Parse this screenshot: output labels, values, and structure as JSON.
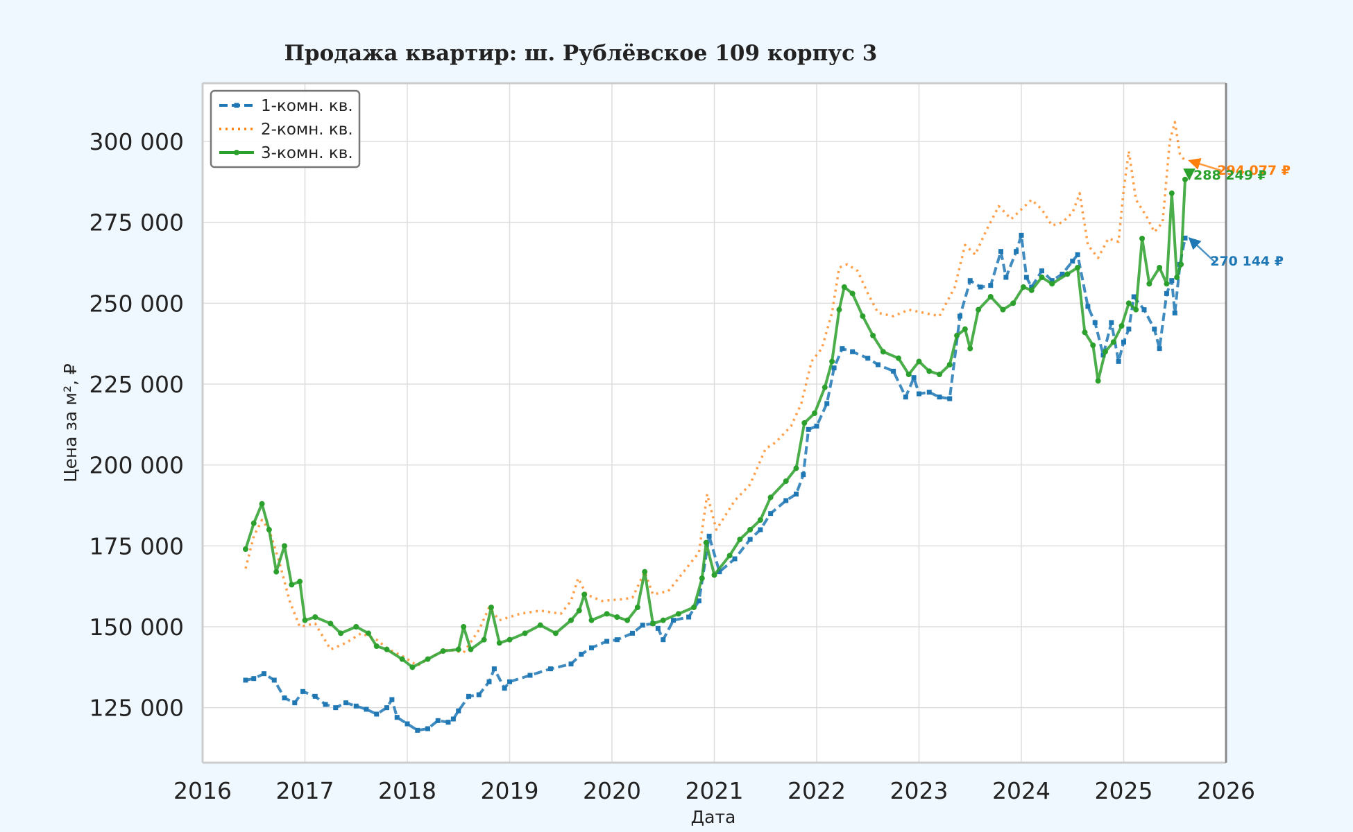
{
  "chart_data": {
    "type": "line",
    "title": "Продажа квартир: ш. Рублёвское 109 корпус 3",
    "xlabel": "Дата",
    "ylabel": "Цена за м², ₽",
    "xlim": [
      2016,
      2026
    ],
    "ylim": [
      108000,
      318000
    ],
    "x_ticks": [
      "2016",
      "2017",
      "2018",
      "2019",
      "2020",
      "2021",
      "2022",
      "2023",
      "2024",
      "2025",
      "2026"
    ],
    "y_ticks": [
      "125 000",
      "150 000",
      "175 000",
      "200 000",
      "225 000",
      "250 000",
      "275 000",
      "300 000"
    ],
    "grid": true,
    "legend_position": "top-left",
    "series": [
      {
        "name": "1-комн. кв.",
        "color": "#1f77b4",
        "style": "dashed-square-markers",
        "points": [
          [
            2016.42,
            133500
          ],
          [
            2016.5,
            134000
          ],
          [
            2016.6,
            135500
          ],
          [
            2016.7,
            133500
          ],
          [
            2016.8,
            128000
          ],
          [
            2016.9,
            126500
          ],
          [
            2016.98,
            130000
          ],
          [
            2017.1,
            128500
          ],
          [
            2017.2,
            126000
          ],
          [
            2017.3,
            125000
          ],
          [
            2017.4,
            126500
          ],
          [
            2017.5,
            125500
          ],
          [
            2017.6,
            124500
          ],
          [
            2017.7,
            123000
          ],
          [
            2017.8,
            125000
          ],
          [
            2017.85,
            127500
          ],
          [
            2017.9,
            122000
          ],
          [
            2018.0,
            120000
          ],
          [
            2018.1,
            118000
          ],
          [
            2018.2,
            118500
          ],
          [
            2018.3,
            121000
          ],
          [
            2018.4,
            120500
          ],
          [
            2018.45,
            121500
          ],
          [
            2018.5,
            124000
          ],
          [
            2018.6,
            128500
          ],
          [
            2018.7,
            129000
          ],
          [
            2018.8,
            133000
          ],
          [
            2018.85,
            137000
          ],
          [
            2018.95,
            131000
          ],
          [
            2019.0,
            133000
          ],
          [
            2019.2,
            135000
          ],
          [
            2019.4,
            137000
          ],
          [
            2019.6,
            138500
          ],
          [
            2019.7,
            141500
          ],
          [
            2019.8,
            143500
          ],
          [
            2019.95,
            145500
          ],
          [
            2020.05,
            146000
          ],
          [
            2020.2,
            148000
          ],
          [
            2020.3,
            150500
          ],
          [
            2020.4,
            151000
          ],
          [
            2020.45,
            149500
          ],
          [
            2020.5,
            146000
          ],
          [
            2020.6,
            152000
          ],
          [
            2020.75,
            153000
          ],
          [
            2020.85,
            158000
          ],
          [
            2020.95,
            178000
          ],
          [
            2021.05,
            167000
          ],
          [
            2021.2,
            171000
          ],
          [
            2021.35,
            177000
          ],
          [
            2021.45,
            180000
          ],
          [
            2021.55,
            185000
          ],
          [
            2021.7,
            189000
          ],
          [
            2021.8,
            191000
          ],
          [
            2021.87,
            197000
          ],
          [
            2021.92,
            211000
          ],
          [
            2022.0,
            212000
          ],
          [
            2022.1,
            219000
          ],
          [
            2022.17,
            230000
          ],
          [
            2022.25,
            236000
          ],
          [
            2022.35,
            235000
          ],
          [
            2022.5,
            233000
          ],
          [
            2022.6,
            231000
          ],
          [
            2022.75,
            229000
          ],
          [
            2022.87,
            221000
          ],
          [
            2022.95,
            227000
          ],
          [
            2023.0,
            222000
          ],
          [
            2023.1,
            222500
          ],
          [
            2023.2,
            221000
          ],
          [
            2023.3,
            220500
          ],
          [
            2023.4,
            246000
          ],
          [
            2023.5,
            257000
          ],
          [
            2023.6,
            255000
          ],
          [
            2023.7,
            255500
          ],
          [
            2023.8,
            266000
          ],
          [
            2023.85,
            258000
          ],
          [
            2023.95,
            266000
          ],
          [
            2024.0,
            271000
          ],
          [
            2024.05,
            258000
          ],
          [
            2024.1,
            255000
          ],
          [
            2024.2,
            260000
          ],
          [
            2024.3,
            257000
          ],
          [
            2024.4,
            259000
          ],
          [
            2024.5,
            263000
          ],
          [
            2024.55,
            265000
          ],
          [
            2024.65,
            249000
          ],
          [
            2024.72,
            244000
          ],
          [
            2024.8,
            234000
          ],
          [
            2024.88,
            244000
          ],
          [
            2024.95,
            232000
          ],
          [
            2025.0,
            238000
          ],
          [
            2025.05,
            242000
          ],
          [
            2025.1,
            252000
          ],
          [
            2025.2,
            248000
          ],
          [
            2025.3,
            242000
          ],
          [
            2025.35,
            236000
          ],
          [
            2025.42,
            253000
          ],
          [
            2025.47,
            257000
          ],
          [
            2025.5,
            247000
          ],
          [
            2025.55,
            262000
          ],
          [
            2025.6,
            270144
          ]
        ]
      },
      {
        "name": "2-комн. кв.",
        "color": "#ff7f0e",
        "style": "dotted",
        "points": [
          [
            2016.42,
            168000
          ],
          [
            2016.5,
            178000
          ],
          [
            2016.58,
            183000
          ],
          [
            2016.65,
            180000
          ],
          [
            2016.75,
            170000
          ],
          [
            2016.85,
            158000
          ],
          [
            2016.95,
            150000
          ],
          [
            2017.1,
            151000
          ],
          [
            2017.25,
            143000
          ],
          [
            2017.4,
            145000
          ],
          [
            2017.55,
            148000
          ],
          [
            2017.7,
            146000
          ],
          [
            2017.82,
            143000
          ],
          [
            2017.95,
            141000
          ],
          [
            2018.1,
            138000
          ],
          [
            2018.25,
            141000
          ],
          [
            2018.4,
            143000
          ],
          [
            2018.55,
            142000
          ],
          [
            2018.7,
            149000
          ],
          [
            2018.8,
            156000
          ],
          [
            2018.9,
            152000
          ],
          [
            2019.1,
            154000
          ],
          [
            2019.3,
            155000
          ],
          [
            2019.5,
            154000
          ],
          [
            2019.6,
            158000
          ],
          [
            2019.67,
            165000
          ],
          [
            2019.75,
            160000
          ],
          [
            2019.9,
            158000
          ],
          [
            2020.1,
            158500
          ],
          [
            2020.2,
            159000
          ],
          [
            2020.32,
            167000
          ],
          [
            2020.4,
            160000
          ],
          [
            2020.55,
            161000
          ],
          [
            2020.7,
            167000
          ],
          [
            2020.85,
            173000
          ],
          [
            2020.93,
            191000
          ],
          [
            2021.02,
            180000
          ],
          [
            2021.2,
            189000
          ],
          [
            2021.35,
            194000
          ],
          [
            2021.5,
            205000
          ],
          [
            2021.6,
            207000
          ],
          [
            2021.75,
            212000
          ],
          [
            2021.85,
            219000
          ],
          [
            2021.95,
            232000
          ],
          [
            2022.05,
            236000
          ],
          [
            2022.15,
            247000
          ],
          [
            2022.22,
            261000
          ],
          [
            2022.3,
            262000
          ],
          [
            2022.4,
            260000
          ],
          [
            2022.5,
            253000
          ],
          [
            2022.6,
            247000
          ],
          [
            2022.75,
            246000
          ],
          [
            2022.9,
            248000
          ],
          [
            2023.05,
            247000
          ],
          [
            2023.2,
            246000
          ],
          [
            2023.35,
            255000
          ],
          [
            2023.45,
            268000
          ],
          [
            2023.55,
            265000
          ],
          [
            2023.65,
            272000
          ],
          [
            2023.78,
            280000
          ],
          [
            2023.9,
            276000
          ],
          [
            2024.0,
            279000
          ],
          [
            2024.1,
            282000
          ],
          [
            2024.2,
            279000
          ],
          [
            2024.3,
            274000
          ],
          [
            2024.4,
            275000
          ],
          [
            2024.5,
            278000
          ],
          [
            2024.57,
            284000
          ],
          [
            2024.65,
            268000
          ],
          [
            2024.75,
            264000
          ],
          [
            2024.85,
            270000
          ],
          [
            2024.95,
            269000
          ],
          [
            2025.0,
            285000
          ],
          [
            2025.05,
            297000
          ],
          [
            2025.12,
            282000
          ],
          [
            2025.22,
            277000
          ],
          [
            2025.3,
            272000
          ],
          [
            2025.38,
            275000
          ],
          [
            2025.45,
            300000
          ],
          [
            2025.5,
            306000
          ],
          [
            2025.55,
            296000
          ],
          [
            2025.6,
            294077
          ]
        ]
      },
      {
        "name": "3-комн. кв.",
        "color": "#2ca02c",
        "style": "solid-dot-markers",
        "points": [
          [
            2016.42,
            174000
          ],
          [
            2016.5,
            182000
          ],
          [
            2016.58,
            188000
          ],
          [
            2016.65,
            180000
          ],
          [
            2016.72,
            167000
          ],
          [
            2016.8,
            175000
          ],
          [
            2016.87,
            163000
          ],
          [
            2016.95,
            164000
          ],
          [
            2017.0,
            152000
          ],
          [
            2017.1,
            153000
          ],
          [
            2017.25,
            151000
          ],
          [
            2017.35,
            148000
          ],
          [
            2017.5,
            150000
          ],
          [
            2017.62,
            148000
          ],
          [
            2017.7,
            144000
          ],
          [
            2017.8,
            143000
          ],
          [
            2017.95,
            140000
          ],
          [
            2018.05,
            137500
          ],
          [
            2018.2,
            140000
          ],
          [
            2018.35,
            142500
          ],
          [
            2018.5,
            143000
          ],
          [
            2018.55,
            150000
          ],
          [
            2018.62,
            143000
          ],
          [
            2018.75,
            146000
          ],
          [
            2018.82,
            156000
          ],
          [
            2018.9,
            145000
          ],
          [
            2019.0,
            146000
          ],
          [
            2019.15,
            148000
          ],
          [
            2019.3,
            150500
          ],
          [
            2019.45,
            148000
          ],
          [
            2019.6,
            152000
          ],
          [
            2019.68,
            155000
          ],
          [
            2019.73,
            160000
          ],
          [
            2019.8,
            152000
          ],
          [
            2019.95,
            154000
          ],
          [
            2020.05,
            153000
          ],
          [
            2020.15,
            152000
          ],
          [
            2020.25,
            156000
          ],
          [
            2020.32,
            167000
          ],
          [
            2020.4,
            151000
          ],
          [
            2020.5,
            152000
          ],
          [
            2020.65,
            154000
          ],
          [
            2020.8,
            156000
          ],
          [
            2020.88,
            165000
          ],
          [
            2020.92,
            176000
          ],
          [
            2021.0,
            166000
          ],
          [
            2021.15,
            172000
          ],
          [
            2021.25,
            177000
          ],
          [
            2021.35,
            180000
          ],
          [
            2021.45,
            183000
          ],
          [
            2021.55,
            190000
          ],
          [
            2021.7,
            195000
          ],
          [
            2021.8,
            199000
          ],
          [
            2021.88,
            213000
          ],
          [
            2021.98,
            216000
          ],
          [
            2022.08,
            224000
          ],
          [
            2022.15,
            232000
          ],
          [
            2022.22,
            248000
          ],
          [
            2022.27,
            255000
          ],
          [
            2022.35,
            253000
          ],
          [
            2022.45,
            246000
          ],
          [
            2022.55,
            240000
          ],
          [
            2022.65,
            235000
          ],
          [
            2022.8,
            233000
          ],
          [
            2022.9,
            228000
          ],
          [
            2023.0,
            232000
          ],
          [
            2023.1,
            229000
          ],
          [
            2023.2,
            228000
          ],
          [
            2023.3,
            231000
          ],
          [
            2023.37,
            240000
          ],
          [
            2023.45,
            242000
          ],
          [
            2023.5,
            236000
          ],
          [
            2023.58,
            248000
          ],
          [
            2023.7,
            252000
          ],
          [
            2023.82,
            248000
          ],
          [
            2023.92,
            250000
          ],
          [
            2024.02,
            255000
          ],
          [
            2024.1,
            254000
          ],
          [
            2024.2,
            258000
          ],
          [
            2024.3,
            256000
          ],
          [
            2024.45,
            259000
          ],
          [
            2024.55,
            261000
          ],
          [
            2024.62,
            241000
          ],
          [
            2024.7,
            237000
          ],
          [
            2024.75,
            226000
          ],
          [
            2024.82,
            235000
          ],
          [
            2024.9,
            238000
          ],
          [
            2024.98,
            243000
          ],
          [
            2025.05,
            250000
          ],
          [
            2025.12,
            248000
          ],
          [
            2025.18,
            270000
          ],
          [
            2025.25,
            256000
          ],
          [
            2025.35,
            261000
          ],
          [
            2025.42,
            256000
          ],
          [
            2025.47,
            284000
          ],
          [
            2025.52,
            258000
          ],
          [
            2025.56,
            262000
          ],
          [
            2025.6,
            288249
          ]
        ]
      }
    ],
    "annotations": [
      {
        "series": "2-комн. кв.",
        "text": "294 077 ₽"
      },
      {
        "series": "3-комн. кв.",
        "text": "288 249 ₽"
      },
      {
        "series": "1-комн. кв.",
        "text": "270 144 ₽"
      }
    ]
  }
}
